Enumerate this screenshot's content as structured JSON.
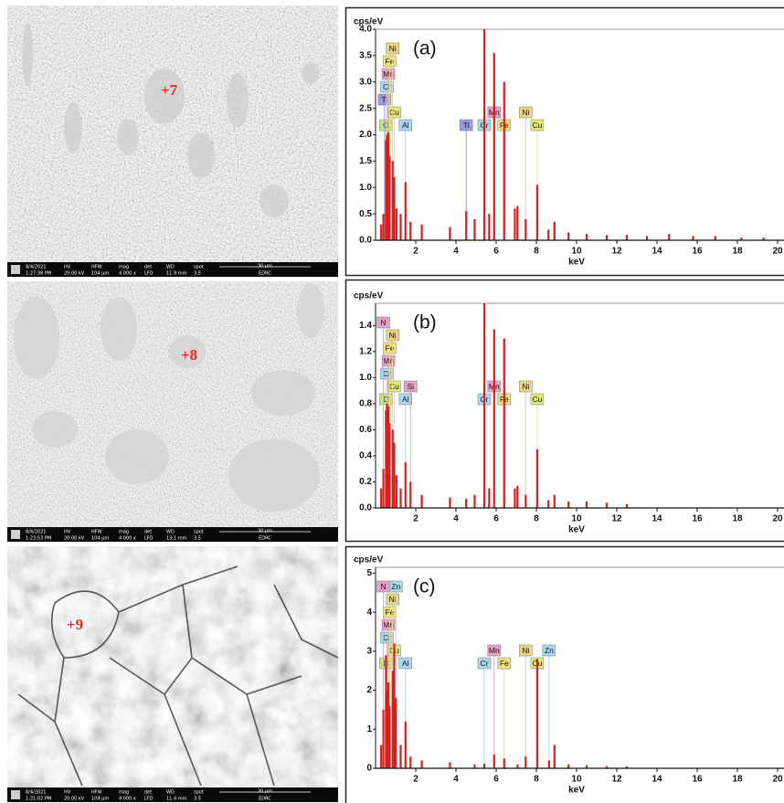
{
  "images": [
    {
      "marker": "+7",
      "date": "8/4/2021",
      "time": "1:27:38 PM",
      "hv": "20.00 kV",
      "hfw": "104 μm",
      "mag": "4 000 x",
      "det": "LFD",
      "wd": "11.9 mm",
      "spot": "3.5",
      "scale": "30 μm",
      "lab": "EDRC"
    },
    {
      "marker": "+8",
      "date": "8/4/2021",
      "time": "1:23:53 PM",
      "hv": "20.00 kV",
      "hfw": "104 μm",
      "mag": "4 000 x",
      "det": "LFD",
      "wd": "13.1 mm",
      "spot": "3.5",
      "scale": "30 μm",
      "lab": "EDRC"
    },
    {
      "marker": "+9",
      "date": "8/4/2021",
      "time": "1:31:02 PM",
      "hv": "20.00 kV",
      "hfw": "104 μm",
      "mag": "4 000 x",
      "det": "LFD",
      "wd": "11.4 mm",
      "spot": "3.5",
      "scale": "30 μm",
      "lab": "EDRC"
    }
  ],
  "info_headers": [
    "HV",
    "HFW",
    "mag",
    "det",
    "WD",
    "spot"
  ],
  "chart_data": [
    {
      "type": "bar",
      "panel_label": "(a)",
      "y_label": "cps/eV",
      "x_label": "keV",
      "xlim": [
        0,
        20
      ],
      "xticks": [
        2,
        4,
        6,
        8,
        10,
        12,
        14,
        16,
        18,
        20
      ],
      "ylim": [
        0,
        4
      ],
      "yticks": [
        {
          "value": 0,
          "label": "0.0"
        },
        0.5,
        {
          "value": 1,
          "label": "1.0"
        },
        1.5,
        {
          "value": 2,
          "label": "2.0"
        },
        2.5,
        {
          "value": 3,
          "label": "3.0"
        },
        3.5,
        {
          "value": 4,
          "label": "4.0"
        }
      ],
      "peaks": {
        "color": "#d81e1e",
        "x": [
          0.28,
          0.39,
          0.52,
          0.57,
          0.64,
          0.7,
          0.85,
          0.93,
          1.04,
          1.25,
          1.49,
          1.74,
          2.3,
          3.7,
          4.51,
          4.93,
          5.41,
          5.65,
          5.9,
          6.4,
          6.93,
          7.06,
          7.47,
          8.04,
          8.6,
          8.9,
          9.6,
          10.5,
          11.5,
          12.5,
          13.5,
          14.6,
          15.8,
          16.9,
          18.2,
          19.3
        ],
        "values": [
          0.3,
          0.5,
          1.9,
          2.0,
          2.05,
          1.6,
          1.5,
          1.2,
          0.6,
          0.5,
          1.1,
          0.35,
          0.3,
          0.25,
          0.55,
          0.4,
          4.0,
          0.5,
          3.55,
          3.0,
          0.6,
          0.65,
          0.4,
          1.05,
          0.2,
          0.35,
          0.15,
          0.12,
          0.1,
          0.1,
          0.08,
          0.12,
          0.08,
          0.08,
          0.05,
          0.05
        ]
      },
      "elements": [
        {
          "label": "O",
          "x": 0.52,
          "color": "#c8e08a"
        },
        {
          "label": "Al",
          "x": 1.49,
          "color": "#a8d8ee"
        },
        {
          "label": "Cu",
          "x": 0.93,
          "color": "#e0ea7a"
        },
        {
          "label": "Ti",
          "x": 0.45,
          "color": "#9b9bdc"
        },
        {
          "label": "Cr",
          "x": 0.57,
          "color": "#a8d8ee"
        },
        {
          "label": "Mn",
          "x": 0.64,
          "color": "#e8a0c8"
        },
        {
          "label": "Fe",
          "x": 0.7,
          "color": "#f2e27a"
        },
        {
          "label": "Ni",
          "x": 0.85,
          "color": "#f5d27a"
        },
        {
          "label": "Ti",
          "x": 4.51,
          "color": "#9b9bdc"
        },
        {
          "label": "Cr",
          "x": 5.41,
          "color": "#a8d8ee"
        },
        {
          "label": "Fe",
          "x": 6.4,
          "color": "#f2e27a"
        },
        {
          "label": "Cu",
          "x": 8.04,
          "color": "#e0ea7a"
        },
        {
          "label": "Mn",
          "x": 5.9,
          "color": "#e8a0c8"
        },
        {
          "label": "Ni",
          "x": 7.47,
          "color": "#f5d27a"
        }
      ]
    },
    {
      "type": "bar",
      "panel_label": "(b)",
      "y_label": "cps/eV",
      "x_label": "keV",
      "xlim": [
        0,
        20
      ],
      "xticks": [
        2,
        4,
        6,
        8,
        10,
        12,
        14,
        16,
        18,
        20
      ],
      "ylim": [
        0,
        1.57
      ],
      "yticks": [
        {
          "value": 0,
          "label": "0.0"
        },
        0.2,
        0.4,
        0.6,
        0.8,
        {
          "value": 1,
          "label": "1.0"
        },
        1.2,
        1.4
      ],
      "peaks": {
        "color": "#d81e1e",
        "x": [
          0.28,
          0.39,
          0.52,
          0.57,
          0.64,
          0.7,
          0.85,
          0.93,
          1.04,
          1.25,
          1.49,
          1.74,
          2.3,
          3.7,
          4.51,
          4.93,
          5.41,
          5.65,
          5.9,
          6.4,
          6.93,
          7.06,
          7.47,
          8.04,
          8.6,
          8.9,
          9.6,
          10.5,
          11.5,
          12.5
        ],
        "values": [
          0.15,
          0.3,
          0.75,
          0.8,
          0.78,
          0.65,
          0.6,
          0.5,
          0.25,
          0.15,
          0.35,
          0.2,
          0.1,
          0.08,
          0.07,
          0.1,
          1.57,
          0.15,
          1.37,
          1.3,
          0.15,
          0.17,
          0.1,
          0.45,
          0.06,
          0.1,
          0.05,
          0.05,
          0.04,
          0.03
        ]
      },
      "elements": [
        {
          "label": "O",
          "x": 0.52,
          "color": "#c8e08a"
        },
        {
          "label": "Al",
          "x": 1.49,
          "color": "#a8d8ee"
        },
        {
          "label": "Cu",
          "x": 0.93,
          "color": "#e0ea7a"
        },
        {
          "label": "Si",
          "x": 1.74,
          "color": "#e8a0c8"
        },
        {
          "label": "Cr",
          "x": 0.57,
          "color": "#a8d8ee"
        },
        {
          "label": "Mn",
          "x": 0.64,
          "color": "#e8a0c8"
        },
        {
          "label": "Fe",
          "x": 0.7,
          "color": "#f2e27a"
        },
        {
          "label": "Ni",
          "x": 0.85,
          "color": "#f5d27a"
        },
        {
          "label": "N",
          "x": 0.39,
          "color": "#e8a0c8"
        },
        {
          "label": "Cr",
          "x": 5.41,
          "color": "#a8d8ee"
        },
        {
          "label": "Fe",
          "x": 6.4,
          "color": "#f2e27a"
        },
        {
          "label": "Cu",
          "x": 8.04,
          "color": "#e0ea7a"
        },
        {
          "label": "Mn",
          "x": 5.9,
          "color": "#e8a0c8"
        },
        {
          "label": "Ni",
          "x": 7.47,
          "color": "#f5d27a"
        }
      ]
    },
    {
      "type": "bar",
      "panel_label": "(c)",
      "y_label": "cps/eV",
      "x_label": "keV",
      "xlim": [
        0,
        20
      ],
      "xticks": [
        2,
        4,
        6,
        8,
        10,
        12,
        14,
        16,
        18,
        20
      ],
      "ylim": [
        0,
        5.15
      ],
      "yticks": [
        0,
        1,
        2,
        3,
        4,
        5
      ],
      "peaks": {
        "color": "#d81e1e",
        "x": [
          0.28,
          0.39,
          0.52,
          0.57,
          0.64,
          0.7,
          0.85,
          0.93,
          1.01,
          1.25,
          1.49,
          1.74,
          2.3,
          3.7,
          4.93,
          5.41,
          5.9,
          6.4,
          7.06,
          7.47,
          8.04,
          8.63,
          8.9,
          9.6,
          10.5,
          11.5,
          12.5
        ],
        "values": [
          0.6,
          1.5,
          2.9,
          2.0,
          2.2,
          1.6,
          2.5,
          3.2,
          1.8,
          0.6,
          1.2,
          0.3,
          0.2,
          0.15,
          0.1,
          0.12,
          0.35,
          0.25,
          0.1,
          0.3,
          2.8,
          0.2,
          0.6,
          0.1,
          0.08,
          0.06,
          0.05
        ]
      },
      "elements": [
        {
          "label": "O",
          "x": 0.52,
          "color": "#c8e08a"
        },
        {
          "label": "Al",
          "x": 1.49,
          "color": "#a8d8ee"
        },
        {
          "label": "Cu",
          "x": 0.93,
          "color": "#e0ea7a"
        },
        {
          "label": "Cr",
          "x": 0.57,
          "color": "#a8d8ee"
        },
        {
          "label": "Mn",
          "x": 0.64,
          "color": "#e8a0c8"
        },
        {
          "label": "Fe",
          "x": 0.7,
          "color": "#f2e27a"
        },
        {
          "label": "Ni",
          "x": 0.85,
          "color": "#f5d27a"
        },
        {
          "label": "N",
          "x": 0.39,
          "color": "#e8a0c8"
        },
        {
          "label": "Zn",
          "x": 1.01,
          "color": "#a8d8ee"
        },
        {
          "label": "Cr",
          "x": 5.41,
          "color": "#a8d8ee"
        },
        {
          "label": "Fe",
          "x": 6.4,
          "color": "#f2e27a"
        },
        {
          "label": "Cu",
          "x": 8.04,
          "color": "#e0ea7a"
        },
        {
          "label": "Mn",
          "x": 5.9,
          "color": "#e8a0c8"
        },
        {
          "label": "Ni",
          "x": 7.47,
          "color": "#f5d27a"
        },
        {
          "label": "Zn",
          "x": 8.63,
          "color": "#a8d8ee"
        }
      ]
    }
  ]
}
